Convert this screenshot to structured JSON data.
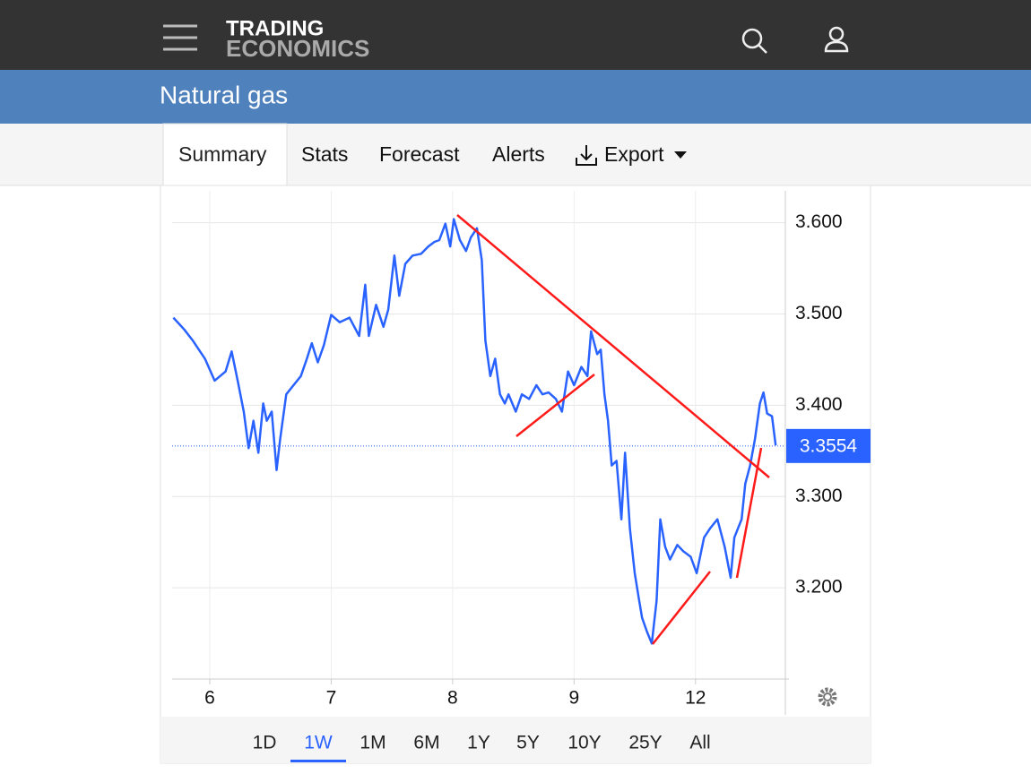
{
  "header": {
    "logo_top": "TRADING",
    "logo_bottom": "ECONOMICS"
  },
  "title": "Natural gas",
  "tabs": [
    "Summary",
    "Stats",
    "Forecast",
    "Alerts",
    "Export"
  ],
  "ranges": [
    "1D",
    "1W",
    "1M",
    "6M",
    "1Y",
    "5Y",
    "10Y",
    "25Y",
    "All"
  ],
  "chart_data": {
    "type": "line",
    "color": "#2962ff",
    "x": [
      -0.3,
      -0.21,
      -0.14,
      -0.04,
      0.04,
      0.13,
      0.18,
      0.23,
      0.28,
      0.32,
      0.36,
      0.4,
      0.44,
      0.47,
      0.51,
      0.55,
      0.58,
      0.63,
      0.69,
      0.75,
      0.8,
      0.84,
      0.89,
      0.94,
      1.0,
      1.07,
      1.15,
      1.23,
      1.28,
      1.31,
      1.37,
      1.43,
      1.47,
      1.52,
      1.56,
      1.61,
      1.67,
      1.74,
      1.8,
      1.85,
      1.89,
      1.94,
      1.98,
      2.01,
      2.06,
      2.11,
      2.15,
      2.2,
      2.24,
      2.27,
      2.31,
      2.35,
      2.39,
      2.43,
      2.46,
      2.52,
      2.57,
      2.63,
      2.69,
      2.74,
      2.79,
      2.85,
      2.9,
      2.95,
      3.0,
      3.06,
      3.11,
      3.14,
      3.19,
      3.22,
      3.25,
      3.28,
      3.31,
      3.35,
      3.39,
      3.42,
      3.46,
      3.5,
      3.53,
      3.56,
      3.6,
      3.64,
      3.68,
      3.71,
      3.75,
      3.79,
      3.85,
      3.9,
      3.96,
      4.01,
      4.07,
      4.12,
      4.18,
      4.24,
      4.29,
      4.32,
      4.38,
      4.41,
      4.45,
      4.49,
      4.53,
      4.56,
      4.59,
      4.63,
      4.66
    ],
    "values": [
      3.496,
      3.483,
      3.471,
      3.451,
      3.427,
      3.437,
      3.459,
      3.427,
      3.393,
      3.353,
      3.383,
      3.348,
      3.402,
      3.383,
      3.393,
      3.329,
      3.363,
      3.412,
      3.422,
      3.432,
      3.451,
      3.468,
      3.447,
      3.466,
      3.499,
      3.491,
      3.496,
      3.476,
      3.532,
      3.476,
      3.51,
      3.486,
      3.505,
      3.564,
      3.52,
      3.555,
      3.564,
      3.566,
      3.574,
      3.579,
      3.581,
      3.599,
      3.574,
      3.604,
      3.581,
      3.569,
      3.584,
      3.594,
      3.559,
      3.471,
      3.432,
      3.451,
      3.412,
      3.402,
      3.412,
      3.393,
      3.412,
      3.407,
      3.422,
      3.412,
      3.414,
      3.407,
      3.393,
      3.437,
      3.422,
      3.442,
      3.432,
      3.481,
      3.456,
      3.461,
      3.412,
      3.383,
      3.334,
      3.339,
      3.275,
      3.348,
      3.265,
      3.216,
      3.191,
      3.167,
      3.152,
      3.139,
      3.186,
      3.275,
      3.245,
      3.231,
      3.247,
      3.24,
      3.234,
      3.216,
      3.255,
      3.265,
      3.275,
      3.245,
      3.211,
      3.255,
      3.275,
      3.314,
      3.334,
      3.363,
      3.402,
      3.414,
      3.391,
      3.388,
      3.356
    ],
    "xlim": [
      -0.31,
      4.74
    ],
    "xticks": [
      {
        "value": 0,
        "label": "6"
      },
      {
        "value": 1,
        "label": "7"
      },
      {
        "value": 2,
        "label": "8"
      },
      {
        "value": 3,
        "label": "9"
      },
      {
        "value": 4,
        "label": "12"
      }
    ],
    "ylim": [
      3.1,
      3.635
    ],
    "yticks": [
      {
        "value": 3.2,
        "label": "3.200"
      },
      {
        "value": 3.3,
        "label": "3.300"
      },
      {
        "value": 3.4,
        "label": "3.400"
      },
      {
        "value": 3.5,
        "label": "3.500"
      },
      {
        "value": 3.6,
        "label": "3.600"
      }
    ],
    "grid": true,
    "last_value": 3.3554
  }
}
